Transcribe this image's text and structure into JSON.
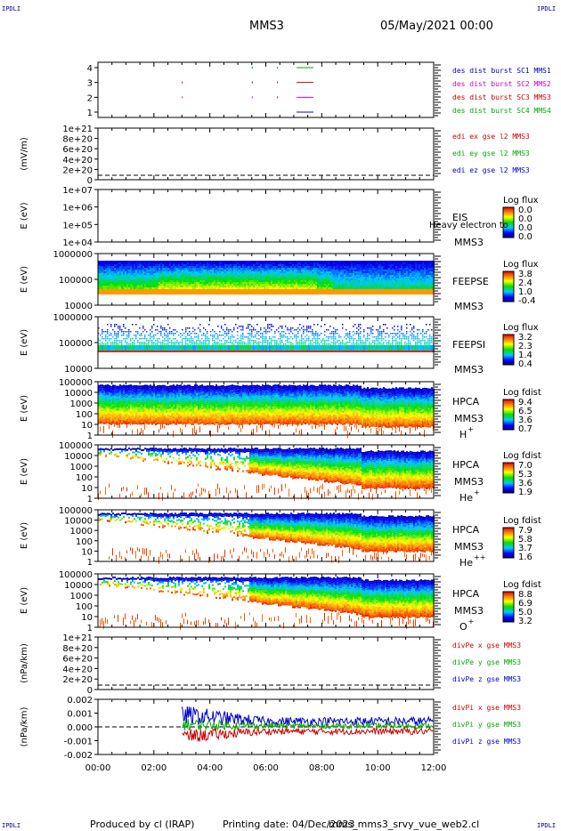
{
  "header": {
    "corner_label": "IPDLI",
    "mission": "MMS3",
    "datetime": "05/May/2021 00:00"
  },
  "footer": {
    "producer": "Produced by cl (IRAP)",
    "printing_date": "Printing date: 04/Dec/2023",
    "filename": "mms_mms3_srvy_vue_web2.cl"
  },
  "x_axis": {
    "ticks": [
      "00:00",
      "02:00",
      "04:00",
      "06:00",
      "08:00",
      "10:00",
      "12:00"
    ],
    "range_hours": [
      0,
      12
    ]
  },
  "panels": [
    {
      "id": "burst",
      "ylabel": "",
      "yticks": [
        "4",
        "3",
        "2",
        "1"
      ],
      "legend": [
        {
          "text": "des dist burst SC1 MMS1",
          "color": "#0000cc"
        },
        {
          "text": "des dist burst SC2 MMS2",
          "color": "#cc00cc"
        },
        {
          "text": "des dist burst SC3 MMS3",
          "color": "#cc0000"
        },
        {
          "text": "des dist burst SC4 MMS4",
          "color": "#00aa00"
        }
      ]
    },
    {
      "id": "edi",
      "ylabel": "(mV/m)",
      "yticks": [
        "1e+21",
        "8e+20",
        "6e+20",
        "4e+20",
        "2e+20",
        "0"
      ],
      "legend": [
        {
          "text": "edi ex gse l2 MMS3",
          "color": "#cc0000"
        },
        {
          "text": "edi ey gse l2 MMS3",
          "color": "#00aa00"
        },
        {
          "text": "edi ez gse l2 MMS3",
          "color": "#0000cc"
        }
      ]
    },
    {
      "id": "eis",
      "ylabel": "E (eV)",
      "yticks": [
        "1e+07",
        "1e+06",
        "1e+05",
        "1e+04"
      ],
      "instrument": "EIS",
      "spacecraft": "MMS3",
      "overlay": "Heavy electron to",
      "cbar_title": "Log flux",
      "cbar_ticks": [
        "0.0",
        "0.0",
        "0.0",
        "0.0"
      ]
    },
    {
      "id": "feeps_e",
      "ylabel": "E (eV)",
      "yticks": [
        "1000000",
        "100000",
        "10000"
      ],
      "instrument": "FEEPSE",
      "spacecraft": "MMS3",
      "cbar_title": "Log flux",
      "cbar_ticks": [
        "3.8",
        "2.4",
        "1.0",
        "-0.4"
      ]
    },
    {
      "id": "feeps_i",
      "ylabel": "E (eV)",
      "yticks": [
        "1000000",
        "100000",
        "10000"
      ],
      "instrument": "FEEPSI",
      "spacecraft": "MMS3",
      "cbar_title": "Log flux",
      "cbar_ticks": [
        "3.2",
        "2.3",
        "1.4",
        "0.4"
      ]
    },
    {
      "id": "hpca_h",
      "ylabel": "E (eV)",
      "yticks": [
        "100000",
        "10000",
        "1000",
        "100",
        "10",
        "1"
      ],
      "instrument": "HPCA",
      "spacecraft": "MMS3",
      "species": "H",
      "charge": "+",
      "cbar_title": "Log fdist",
      "cbar_ticks": [
        "9.4",
        "6.5",
        "3.6",
        "0.7"
      ]
    },
    {
      "id": "hpca_he",
      "ylabel": "E (eV)",
      "yticks": [
        "100000",
        "10000",
        "1000",
        "100",
        "10",
        "1"
      ],
      "instrument": "HPCA",
      "spacecraft": "MMS3",
      "species": "He",
      "charge": "+",
      "cbar_title": "Log fdist",
      "cbar_ticks": [
        "7.0",
        "5.3",
        "3.6",
        "1.9"
      ]
    },
    {
      "id": "hpca_he2",
      "ylabel": "E (eV)",
      "yticks": [
        "100000",
        "10000",
        "1000",
        "100",
        "10",
        "1"
      ],
      "instrument": "HPCA",
      "spacecraft": "MMS3",
      "species": "He",
      "charge": "++",
      "cbar_title": "Log fdist",
      "cbar_ticks": [
        "7.9",
        "5.8",
        "3.7",
        "1.6"
      ]
    },
    {
      "id": "hpca_o",
      "ylabel": "E (eV)",
      "yticks": [
        "100000",
        "10000",
        "1000",
        "100",
        "10",
        "1"
      ],
      "instrument": "HPCA",
      "spacecraft": "MMS3",
      "species": "O",
      "charge": "+",
      "cbar_title": "Log fdist",
      "cbar_ticks": [
        "8.8",
        "6.9",
        "5.0",
        "3.2"
      ]
    },
    {
      "id": "divpe",
      "ylabel": "(nPa/km)",
      "yticks": [
        "1e+21",
        "8e+20",
        "6e+20",
        "4e+20",
        "2e+20",
        "0"
      ],
      "legend": [
        {
          "text": "divPe x gse MMS3",
          "color": "#cc0000"
        },
        {
          "text": "divPe y gse MMS3",
          "color": "#00aa00"
        },
        {
          "text": "divPe z gse MMS3",
          "color": "#0000cc"
        }
      ]
    },
    {
      "id": "divpi",
      "ylabel": "(nPa/km)",
      "yticks": [
        "0.002",
        "0.001",
        "0.000",
        "-0.001",
        "-0.002"
      ],
      "legend": [
        {
          "text": "divPi x gse MMS3",
          "color": "#cc0000"
        },
        {
          "text": "divPi y gse MMS3",
          "color": "#00aa00"
        },
        {
          "text": "divPi z gse MMS3",
          "color": "#0000cc"
        }
      ]
    }
  ],
  "chart_data": {
    "type": "heatmap",
    "x_unit": "hours since 05/May/2021 00:00",
    "xlim": [
      0,
      12
    ],
    "burst_intervals": [
      {
        "sc": 4,
        "start": 7.1,
        "end": 7.7,
        "color": "#00aa00"
      },
      {
        "sc": 3,
        "start": 7.1,
        "end": 7.7,
        "color": "#cc0000"
      },
      {
        "sc": 2,
        "start": 7.1,
        "end": 7.7,
        "color": "#cc00cc"
      },
      {
        "sc": 1,
        "start": 7.1,
        "end": 7.7,
        "color": "#0000cc"
      }
    ],
    "burst_points": [
      {
        "sc": 3,
        "x": 3.0
      },
      {
        "sc": 2,
        "x": 3.0
      },
      {
        "sc": 3,
        "x": 5.5
      },
      {
        "sc": 2,
        "x": 5.5
      },
      {
        "sc": 3,
        "x": 6.4
      },
      {
        "sc": 2,
        "x": 6.4
      },
      {
        "sc": 4,
        "x": 5.5
      },
      {
        "sc": 4,
        "x": 6.4
      }
    ],
    "divpi_series": [
      {
        "name": "divPi x gse MMS3",
        "color": "#cc0000",
        "start_hour": 3.0,
        "mean": -0.0004,
        "spread": 0.0006
      },
      {
        "name": "divPi y gse MMS3",
        "color": "#00aa00",
        "start_hour": 3.0,
        "mean": 0.0001,
        "spread": 0.0005
      },
      {
        "name": "divPi z gse MMS3",
        "color": "#0000cc",
        "start_hour": 3.0,
        "mean": 0.0005,
        "spread": 0.0008
      }
    ]
  }
}
